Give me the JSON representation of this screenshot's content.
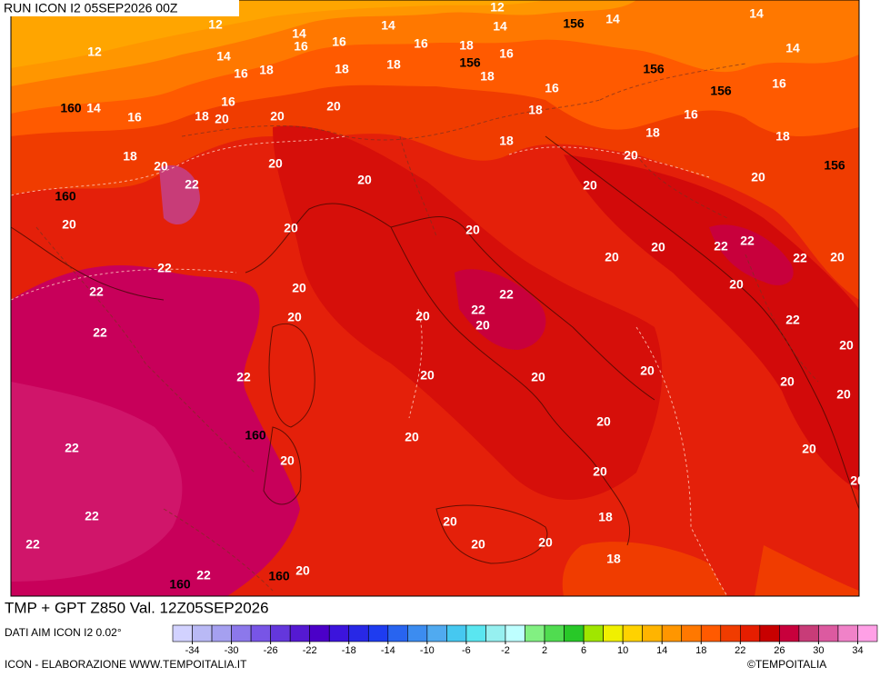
{
  "header": {
    "run": "RUN ICON I2 05SEP2026 00Z"
  },
  "map": {
    "title": "TMP + GPT Z850 Val. 12Z05SEP2026",
    "temperature_labels": [
      12,
      14,
      14,
      12,
      14,
      16,
      16,
      14,
      16,
      18,
      14,
      16,
      12,
      14,
      16,
      18,
      18,
      18,
      18,
      14,
      16,
      16,
      14,
      16,
      16,
      18,
      20,
      20,
      20,
      18,
      16,
      18,
      18,
      18,
      18,
      20,
      20,
      20,
      20,
      22,
      20,
      20,
      20,
      20,
      20,
      20,
      22,
      22,
      20,
      22,
      20,
      22,
      22,
      20,
      22,
      20,
      22,
      20,
      20,
      20,
      22,
      22,
      20,
      22,
      20,
      20,
      20,
      20,
      20,
      20,
      20,
      22,
      20,
      20,
      20,
      20,
      22,
      20,
      18,
      22,
      20,
      20,
      18,
      22,
      20,
      18
    ],
    "geopotential_labels": [
      156,
      156,
      156,
      156,
      160,
      156,
      160,
      160,
      160,
      160
    ]
  },
  "colorbar": {
    "source": "DATI AIM ICON I2 0.02°",
    "lim": [
      -36,
      36
    ],
    "ticks": [
      -34,
      -30,
      -26,
      -22,
      -18,
      -14,
      -10,
      -6,
      -2,
      2,
      6,
      10,
      14,
      18,
      22,
      26,
      30,
      34
    ],
    "colors": [
      "#d2d2ff",
      "#b9b9f5",
      "#a5a0f0",
      "#8c78eb",
      "#7855e6",
      "#6437dc",
      "#5519d2",
      "#4b00c8",
      "#3c14dc",
      "#2828e6",
      "#1e3cf0",
      "#2864f0",
      "#3c8cf0",
      "#50aaf0",
      "#46c8f0",
      "#5ae6f0",
      "#96f0f0",
      "#beffff",
      "#82f082",
      "#50dc50",
      "#28c828",
      "#a0e600",
      "#f0f000",
      "#ffd200",
      "#ffb400",
      "#ff9600",
      "#ff7800",
      "#ff5a00",
      "#f03c00",
      "#e61e00",
      "#c80000",
      "#c8003c",
      "#c83c78",
      "#dc5aa0",
      "#f082c8",
      "#ffa0e6"
    ]
  },
  "footer": {
    "credit": "ICON - ELABORAZIONE WWW.TEMPOITALIA.IT",
    "copyright": "©TEMPOITALIA"
  }
}
